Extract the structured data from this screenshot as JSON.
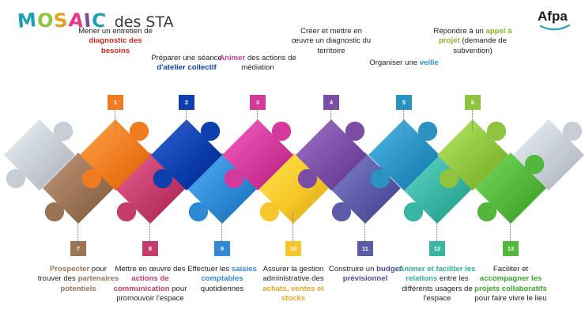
{
  "header": {
    "brand_letters": [
      "M",
      "O",
      "S",
      "A",
      "I",
      "C"
    ],
    "brand_colors": [
      "#1e9fb5",
      "#8cc63f",
      "#e3a01b",
      "#e8358a",
      "#7c4d9e",
      "#1e9fb5"
    ],
    "subtitle": "des STA"
  },
  "logo": {
    "text": "Afpa",
    "swoosh_color": "#2aa6c4"
  },
  "steps": [
    {
      "num": "1",
      "color": "#f07c22",
      "parts": [
        {
          "t": "Mener un entretien de ",
          "c": ""
        },
        {
          "t": "diagnostic des besoins",
          "c": "#d7261e"
        }
      ]
    },
    {
      "num": "2",
      "color": "#0d3fae",
      "parts": [
        {
          "t": "Préparer une séance ",
          "c": ""
        },
        {
          "t": "d'atelier collectif",
          "c": "#0d3fae"
        }
      ]
    },
    {
      "num": "3",
      "color": "#d33a9b",
      "parts": [
        {
          "t": "Animer",
          "c": "#d33a9b"
        },
        {
          "t": " des actions de médiation",
          "c": ""
        }
      ]
    },
    {
      "num": "4",
      "color": "#7b4ea6",
      "parts": [
        {
          "t": "Créer et mettre en œuvre un diagnostic du territoire",
          "c": ""
        }
      ]
    },
    {
      "num": "5",
      "color": "#2a93c4",
      "parts": [
        {
          "t": "Organiser une ",
          "c": ""
        },
        {
          "t": "veille",
          "c": "#2a93c4"
        }
      ]
    },
    {
      "num": "6",
      "color": "#8fc43f",
      "parts": [
        {
          "t": "Répondre à un ",
          "c": ""
        },
        {
          "t": "appel à projet",
          "c": "#86b82c"
        },
        {
          "t": " (demande de subvention)",
          "c": ""
        }
      ]
    },
    {
      "num": "7",
      "color": "#9b7355",
      "parts": [
        {
          "t": "Prospecter",
          "c": "#9b7355"
        },
        {
          "t": " pour trouver des ",
          "c": ""
        },
        {
          "t": "partenaires potentiels",
          "c": "#9b7355"
        }
      ]
    },
    {
      "num": "8",
      "color": "#c43c6b",
      "parts": [
        {
          "t": "Mettre en œuvre des ",
          "c": ""
        },
        {
          "t": "actions de communication",
          "c": "#c43c6b"
        },
        {
          "t": " pour promouvoir l'espace",
          "c": ""
        }
      ]
    },
    {
      "num": "9",
      "color": "#2e8ad4",
      "parts": [
        {
          "t": "Effectuer les ",
          "c": ""
        },
        {
          "t": "saisies comptables",
          "c": "#2e8ad4"
        },
        {
          "t": " quotidiennes",
          "c": ""
        }
      ]
    },
    {
      "num": "10",
      "color": "#f6c62a",
      "parts": [
        {
          "t": "Assurer la gestion administrative des ",
          "c": ""
        },
        {
          "t": "achats, ventes et stocks",
          "c": "#e8a620"
        }
      ]
    },
    {
      "num": "11",
      "color": "#5b5ba8",
      "parts": [
        {
          "t": "Construire un ",
          "c": ""
        },
        {
          "t": "budget prévisionnel",
          "c": "#4b4ba0"
        }
      ]
    },
    {
      "num": "12",
      "color": "#3ab5a3",
      "parts": [
        {
          "t": "Animer et faciliter les relations",
          "c": "#2fab98"
        },
        {
          "t": " entre les différents usagers de l'espace",
          "c": ""
        }
      ]
    },
    {
      "num": "13",
      "color": "#53b73c",
      "parts": [
        {
          "t": "Faciliter et ",
          "c": ""
        },
        {
          "t": "accompagner les projets collaboratifs",
          "c": "#3aa52c"
        },
        {
          "t": " pour faire vivre le lieu",
          "c": ""
        }
      ]
    }
  ]
}
